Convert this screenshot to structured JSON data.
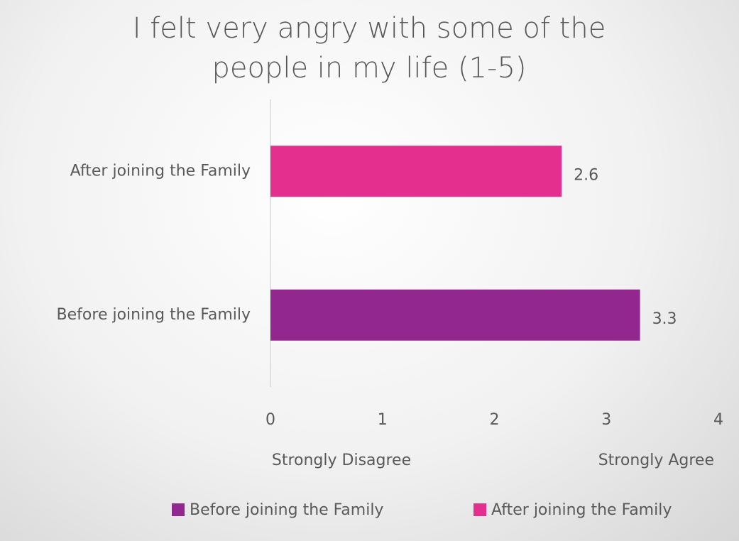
{
  "chart_data": {
    "type": "hbar",
    "title": "I felt very angry with some of the people in my life (1-5)",
    "categories": [
      "Before joining the Family",
      "After joining the Family"
    ],
    "series": [
      {
        "name": "Before joining the Family",
        "color": "#92278f",
        "values": [
          3.3,
          null
        ]
      },
      {
        "name": "After joining the Family",
        "color": "#e52f8f",
        "values": [
          null,
          2.6
        ]
      }
    ],
    "xlim": [
      0,
      4
    ],
    "xticks": [
      0,
      1,
      2,
      3,
      4
    ],
    "annotations": [
      "Strongly Disagree",
      "Strongly Agree"
    ],
    "legend": "bottom"
  }
}
